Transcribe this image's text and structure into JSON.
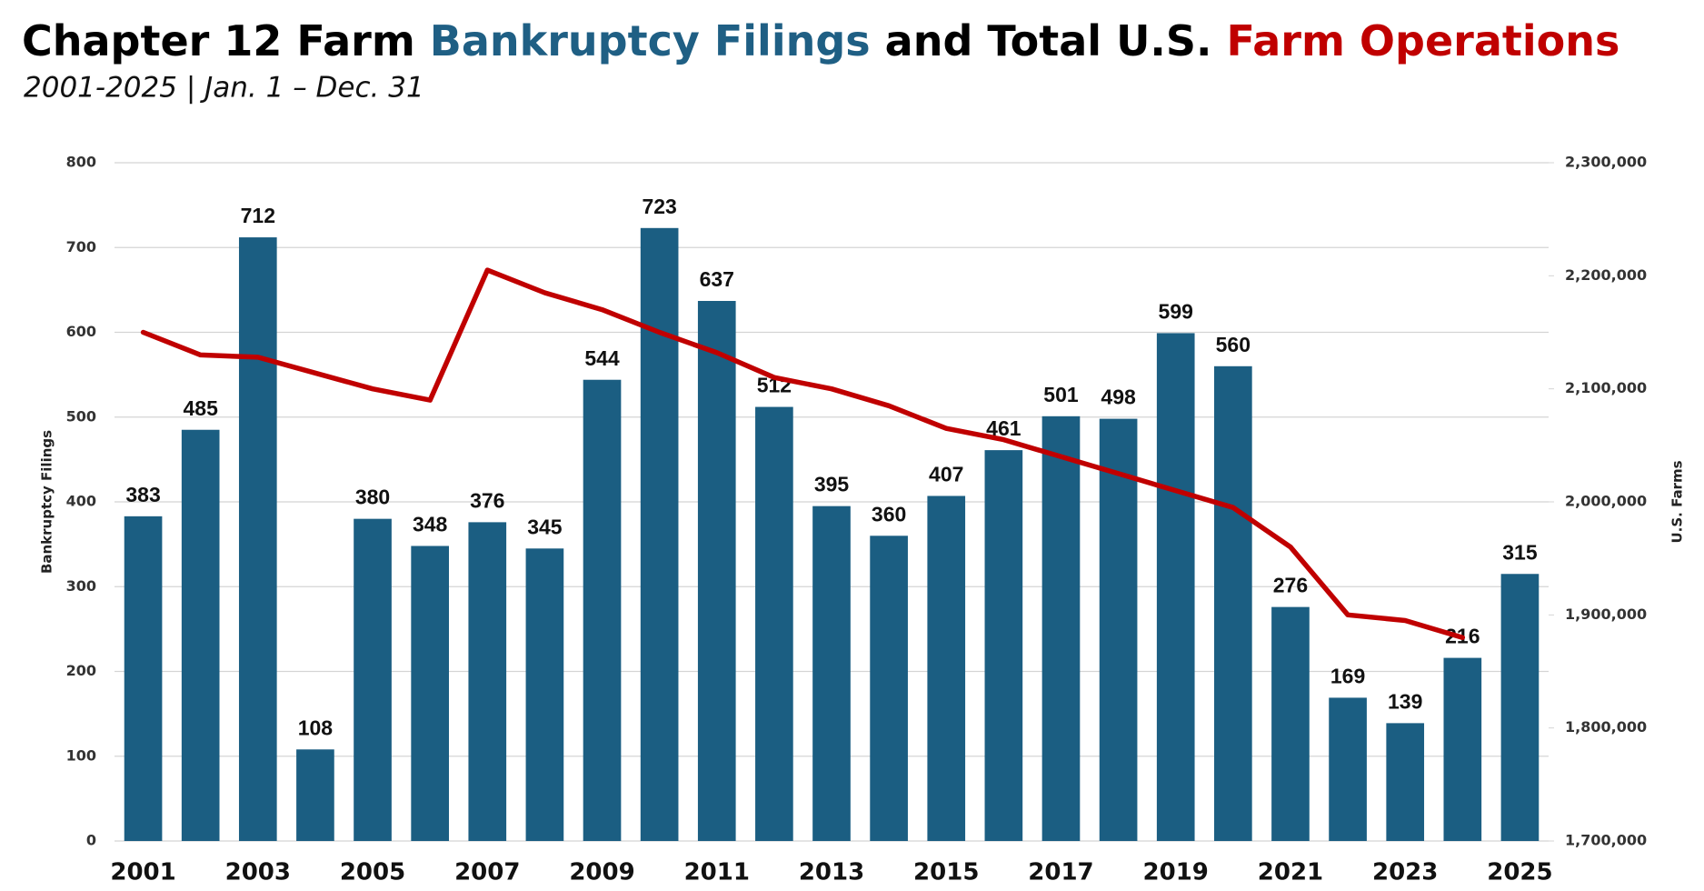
{
  "chart_data": {
    "type": "bar",
    "title_parts": [
      {
        "text": "Chapter 12 Farm",
        "color": "#000000"
      },
      {
        "text": "Bankruptcy Filings",
        "color": "#1f5f84"
      },
      {
        "text": "and Total U.S.",
        "color": "#000000"
      },
      {
        "text": "Farm Operations",
        "color": "#c00000"
      }
    ],
    "subtitle": "2001-2025 | Jan. 1 – Dec. 31",
    "y_label": "Bankruptcy Filings",
    "y2_label": "U.S. Farms",
    "categories": [
      "2001",
      null,
      "2003",
      null,
      "2005",
      null,
      "2007",
      null,
      "2009",
      null,
      "2011",
      null,
      "2013",
      null,
      "2015",
      null,
      "2017",
      null,
      "2019",
      null,
      "2021",
      null,
      "2023",
      null,
      "2025"
    ],
    "series": [
      {
        "type": "bar",
        "color": "#1b5e82",
        "values": [
          383,
          485,
          712,
          108,
          380,
          348,
          376,
          345,
          544,
          723,
          637,
          512,
          395,
          360,
          407,
          461,
          501,
          498,
          599,
          560,
          276,
          169,
          139,
          216,
          315
        ]
      },
      {
        "type": "line",
        "axis": "y2",
        "color": "#c00000",
        "values": [
          2150000,
          2130000,
          2128000,
          2114000,
          2100000,
          2090000,
          2205000,
          2185000,
          2170000,
          2150000,
          2132000,
          2110000,
          2100000,
          2085000,
          2065000,
          2055000,
          2040000,
          2025000,
          2010000,
          1995000,
          1960000,
          1900000,
          1895000,
          1880000,
          null
        ]
      }
    ],
    "ylim": [
      0,
      800
    ],
    "yticks": [
      0,
      100,
      200,
      300,
      400,
      500,
      600,
      700,
      800
    ],
    "y2lim": [
      1700000,
      2300000
    ],
    "y2ticks": [
      {
        "value": 1700000,
        "label": "1,700,000"
      },
      {
        "value": 1800000,
        "label": "1,800,000"
      },
      {
        "value": 1900000,
        "label": "1,900,000"
      },
      {
        "value": 2000000,
        "label": "2,000,000"
      },
      {
        "value": 2100000,
        "label": "2,100,000"
      },
      {
        "value": 2200000,
        "label": "2,200,000"
      },
      {
        "value": 2300000,
        "label": "2,300,000"
      }
    ],
    "grid": true
  }
}
